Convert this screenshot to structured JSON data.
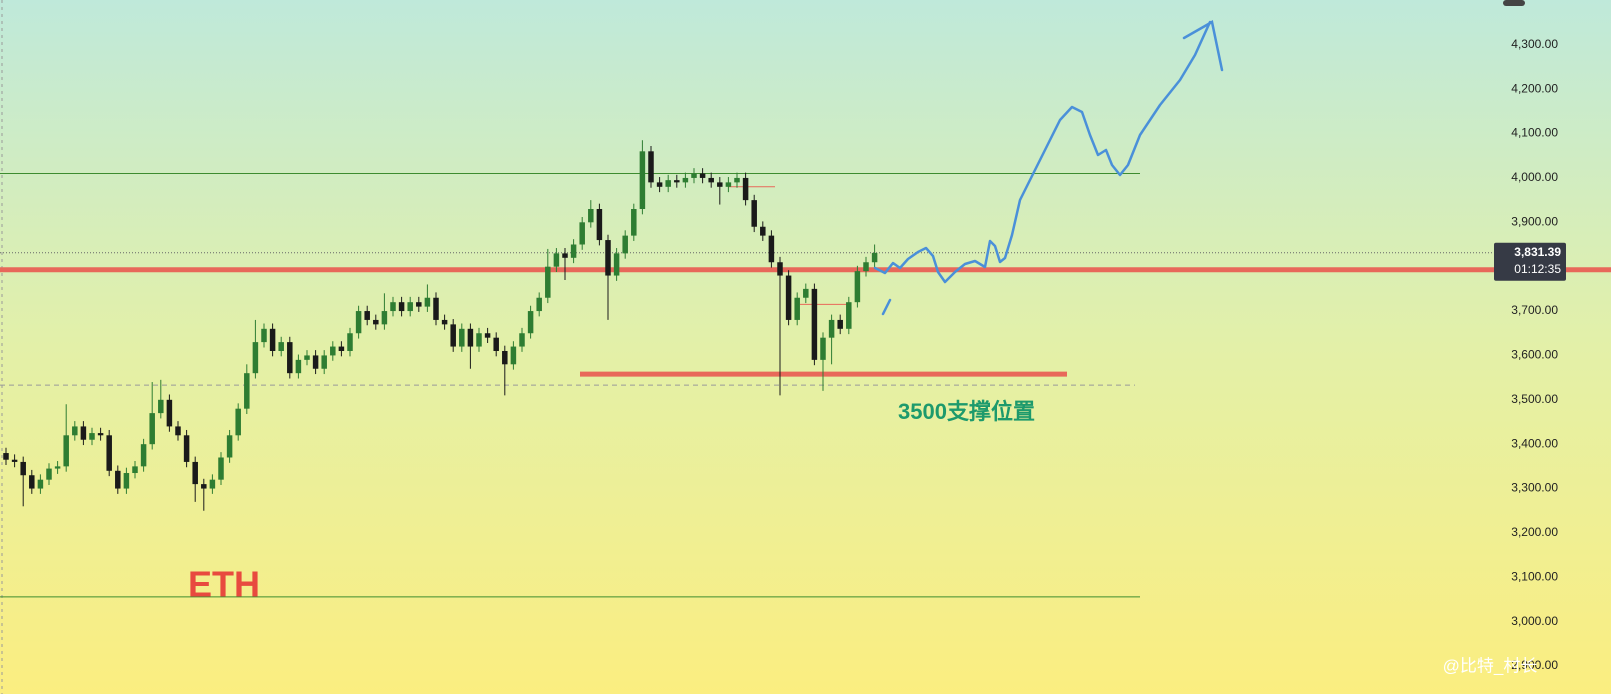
{
  "chart_data": {
    "type": "candlestick",
    "title": "ETH",
    "annotation": "3500支撑位置",
    "watermark": "@比特_村长",
    "up_color": "#2e7d32",
    "down_color": "#1a1a1a",
    "ylim": [
      2837,
      4401
    ],
    "yticks": [
      {
        "value": 2900,
        "label": "2,900.00"
      },
      {
        "value": 3000,
        "label": "3,000.00"
      },
      {
        "value": 3100,
        "label": "3,100.00"
      },
      {
        "value": 3200,
        "label": "3,200.00"
      },
      {
        "value": 3300,
        "label": "3,300.00"
      },
      {
        "value": 3400,
        "label": "3,400.00"
      },
      {
        "value": 3500,
        "label": "3,500.00"
      },
      {
        "value": 3600,
        "label": "3,600.00"
      },
      {
        "value": 3700,
        "label": "3,700.00"
      },
      {
        "value": 3800,
        "label": "3,800.00"
      },
      {
        "value": 3900,
        "label": "3,900.00"
      },
      {
        "value": 4000,
        "label": "4,000.00"
      },
      {
        "value": 4100,
        "label": "4,100.00"
      },
      {
        "value": 4200,
        "label": "4,200.00"
      },
      {
        "value": 4300,
        "label": "4,300.00"
      }
    ],
    "last_price": {
      "value": 3831.39,
      "label": "3,831.39"
    },
    "countdown": "01:12:35",
    "hlines": [
      {
        "value": 4010,
        "color": "#3d8c2f",
        "style": "solid"
      },
      {
        "value": 3831.39,
        "color": "#666666",
        "style": "dotted"
      },
      {
        "value": 3793,
        "color": "#e8685a",
        "style": "thick"
      },
      {
        "value": 3558,
        "color": "#e8685a",
        "style": "thick"
      },
      {
        "value": 3533,
        "color": "#999999",
        "style": "dashed"
      },
      {
        "value": 3056,
        "color": "#3d8c2f",
        "style": "solid"
      },
      {
        "value": 3980,
        "color": "#e8685a",
        "style": "solid"
      },
      {
        "value": 3715,
        "color": "#e8685a",
        "style": "solid"
      }
    ],
    "open": [
      3380,
      3365,
      3360,
      3330,
      3300,
      3320,
      3345,
      3350,
      3420,
      3440,
      3410,
      3425,
      3420,
      3340,
      3300,
      3335,
      3350,
      3400,
      3470,
      3500,
      3440,
      3420,
      3360,
      3310,
      3300,
      3320,
      3370,
      3420,
      3480,
      3560,
      3630,
      3660,
      3610,
      3630,
      3560,
      3590,
      3600,
      3570,
      3600,
      3620,
      3610,
      3650,
      3700,
      3680,
      3670,
      3700,
      3720,
      3700,
      3720,
      3710,
      3730,
      3680,
      3670,
      3620,
      3660,
      3620,
      3650,
      3640,
      3610,
      3580,
      3620,
      3650,
      3700,
      3730,
      3800,
      3830,
      3820,
      3850,
      3900,
      3930,
      3860,
      3780,
      3830,
      3870,
      3930,
      4060,
      3990,
      3980,
      3995,
      3990,
      4000,
      4010,
      4000,
      3990,
      3980,
      3990,
      4000,
      3950,
      3890,
      3870,
      3810,
      3780,
      3680,
      3730,
      3750,
      3590,
      3640,
      3680,
      3660,
      3720,
      3790,
      3810
    ],
    "high": [
      3392,
      3377,
      3372,
      3342,
      3332,
      3357,
      3362,
      3490,
      3452,
      3452,
      3437,
      3437,
      3432,
      3352,
      3347,
      3362,
      3412,
      3540,
      3545,
      3512,
      3452,
      3432,
      3372,
      3322,
      3332,
      3382,
      3432,
      3492,
      3580,
      3680,
      3672,
      3672,
      3642,
      3642,
      3602,
      3612,
      3612,
      3612,
      3632,
      3632,
      3662,
      3712,
      3712,
      3692,
      3740,
      3732,
      3732,
      3732,
      3732,
      3760,
      3742,
      3692,
      3682,
      3672,
      3672,
      3662,
      3662,
      3652,
      3622,
      3632,
      3662,
      3712,
      3742,
      3840,
      3842,
      3842,
      3862,
      3912,
      3950,
      3942,
      3872,
      3842,
      3882,
      3942,
      4085,
      4072,
      4002,
      4007,
      4007,
      4012,
      4022,
      4022,
      4012,
      4002,
      4002,
      4012,
      4012,
      3962,
      3902,
      3882,
      3822,
      3792,
      3742,
      3762,
      3762,
      3652,
      3692,
      3692,
      3732,
      3802,
      3822,
      3850
    ],
    "low": [
      3353,
      3348,
      3260,
      3288,
      3288,
      3308,
      3333,
      3338,
      3408,
      3398,
      3398,
      3408,
      3328,
      3288,
      3288,
      3323,
      3338,
      3388,
      3458,
      3428,
      3408,
      3348,
      3270,
      3250,
      3288,
      3308,
      3358,
      3408,
      3468,
      3548,
      3618,
      3598,
      3598,
      3548,
      3548,
      3578,
      3558,
      3558,
      3588,
      3598,
      3598,
      3638,
      3668,
      3658,
      3658,
      3688,
      3688,
      3688,
      3698,
      3698,
      3668,
      3658,
      3608,
      3608,
      3570,
      3608,
      3628,
      3598,
      3510,
      3568,
      3608,
      3638,
      3688,
      3718,
      3788,
      3770,
      3808,
      3838,
      3888,
      3848,
      3680,
      3768,
      3818,
      3858,
      3918,
      3978,
      3968,
      3968,
      3978,
      3978,
      3988,
      3988,
      3978,
      3940,
      3968,
      3978,
      3938,
      3878,
      3858,
      3798,
      3510,
      3668,
      3668,
      3718,
      3578,
      3520,
      3580,
      3648,
      3648,
      3708,
      3778,
      3798
    ],
    "close": [
      3365,
      3360,
      3330,
      3300,
      3320,
      3345,
      3350,
      3420,
      3440,
      3410,
      3425,
      3420,
      3340,
      3300,
      3335,
      3350,
      3400,
      3470,
      3500,
      3440,
      3420,
      3360,
      3310,
      3300,
      3320,
      3370,
      3420,
      3480,
      3560,
      3630,
      3660,
      3610,
      3630,
      3560,
      3590,
      3600,
      3570,
      3600,
      3620,
      3610,
      3650,
      3700,
      3680,
      3670,
      3700,
      3720,
      3700,
      3720,
      3710,
      3730,
      3680,
      3670,
      3620,
      3660,
      3620,
      3650,
      3640,
      3610,
      3580,
      3620,
      3650,
      3700,
      3730,
      3800,
      3830,
      3820,
      3850,
      3900,
      3930,
      3860,
      3780,
      3830,
      3870,
      3930,
      4060,
      3990,
      3980,
      3995,
      3990,
      4000,
      4010,
      4000,
      3990,
      3980,
      3990,
      4000,
      3950,
      3890,
      3870,
      3810,
      3780,
      3680,
      3730,
      3750,
      3590,
      3640,
      3680,
      3660,
      3720,
      3790,
      3810,
      3831
    ]
  }
}
